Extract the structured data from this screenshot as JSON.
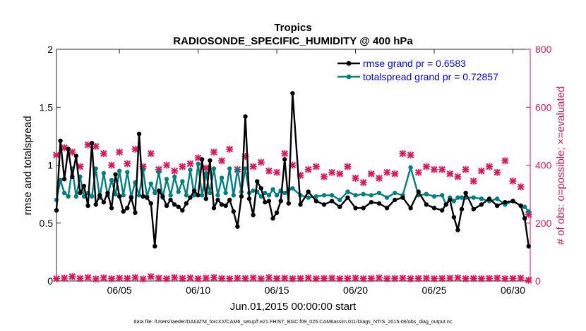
{
  "chart_data": {
    "type": "line",
    "title": "Tropics",
    "subtitle": "RADIOSONDE_SPECIFIC_HUMIDITY @ 400 hPa",
    "xlabel": "Jun.01,2015 00:00:00 start",
    "ylabel": "rmse and totalspread",
    "ylabel_right": "# of obs: o=possible; ×=evaluated",
    "footnote": "data file: /Users/raeder/DAI/ATM_forcXX/CAM6_setup/f.e21.FHIST_BGC.f09_025.CAM6assim.011/Diags_NTrS_2015-06/obs_diag_output.nc",
    "xlim": [
      1.0,
      31.1
    ],
    "ylim": [
      0,
      2
    ],
    "ylim_right": [
      0,
      800
    ],
    "x_ticks": [
      5,
      10,
      15,
      20,
      25,
      30
    ],
    "x_tick_labels": [
      "06/05",
      "06/10",
      "06/15",
      "06/20",
      "06/25",
      "06/30"
    ],
    "y_ticks": [
      0,
      0.5,
      1,
      1.5,
      2
    ],
    "y_tick_labels": [
      "0",
      "0.5",
      "1",
      "1.5",
      "2"
    ],
    "y2_ticks": [
      0,
      200,
      400,
      600,
      800
    ],
    "y2_tick_labels": [
      "0",
      "200",
      "400",
      "600",
      "800"
    ],
    "colors": {
      "rmse": "#000000",
      "spread": "#008080",
      "obs": "#e0145a",
      "legend_text": "#0000ff"
    },
    "legend": {
      "placement": "top-right",
      "entries": [
        "rmse grand pr = 0.6583",
        "totalspread grand pr = 0.72857"
      ]
    },
    "series": [
      {
        "name": "rmse grand pr = 0.6583",
        "axis": "left",
        "x": [
          1.0,
          1.25,
          1.5,
          1.75,
          2.0,
          2.25,
          2.5,
          2.75,
          3.0,
          3.25,
          3.5,
          3.75,
          4.0,
          4.25,
          4.5,
          4.75,
          5.0,
          5.25,
          5.5,
          5.75,
          6.0,
          6.25,
          6.5,
          6.75,
          7.0,
          7.25,
          7.5,
          7.75,
          8.0,
          8.25,
          8.5,
          8.75,
          9.0,
          9.25,
          9.5,
          9.75,
          10.0,
          10.25,
          10.5,
          10.75,
          11.0,
          11.25,
          11.5,
          11.75,
          12.0,
          12.25,
          12.5,
          12.75,
          13.0,
          13.25,
          13.5,
          13.75,
          14.0,
          14.25,
          14.5,
          14.75,
          15.0,
          15.25,
          15.5,
          15.75,
          16.0,
          16.5,
          17,
          17.5,
          18,
          18.5,
          19,
          19.5,
          20,
          20.5,
          21,
          21.5,
          22,
          22.5,
          23,
          23.5,
          24,
          24.5,
          25,
          25.5,
          25.75,
          26,
          26.25,
          26.5,
          26.75,
          27,
          27.5,
          28,
          28.5,
          29,
          29.5,
          30,
          30.5,
          30.75,
          31.0
        ],
        "values": [
          0.61,
          1.21,
          0.88,
          1.14,
          0.9,
          1.08,
          0.76,
          0.82,
          0.65,
          1.19,
          0.66,
          0.74,
          0.68,
          0.76,
          0.63,
          0.92,
          0.73,
          0.6,
          0.63,
          0.72,
          0.59,
          1.27,
          0.73,
          0.72,
          0.67,
          0.3,
          0.78,
          0.73,
          0.65,
          0.7,
          0.66,
          0.64,
          0.61,
          0.67,
          0.72,
          0.78,
          0.74,
          1.05,
          0.71,
          1.04,
          0.63,
          0.7,
          0.66,
          0.65,
          0.7,
          0.6,
          0.47,
          0.73,
          1.42,
          0.71,
          0.57,
          0.86,
          0.8,
          0.68,
          0.69,
          0.54,
          0.59,
          0.69,
          1.05,
          0.67,
          1.62,
          0.66,
          0.77,
          0.69,
          0.66,
          0.69,
          0.64,
          0.72,
          0.63,
          0.63,
          0.68,
          0.67,
          0.63,
          0.7,
          0.72,
          0.63,
          0.77,
          0.66,
          0.63,
          0.61,
          0.66,
          0.7,
          0.55,
          0.44,
          0.62,
          0.76,
          0.62,
          0.66,
          0.71,
          0.65,
          0.68,
          0.69,
          0.65,
          0.54,
          0.3
        ]
      },
      {
        "name": "totalspread grand pr = 0.72857",
        "axis": "left",
        "x": [
          1.0,
          1.25,
          1.5,
          1.75,
          2.0,
          2.25,
          2.5,
          2.75,
          3.0,
          3.25,
          3.5,
          3.75,
          4.0,
          4.25,
          4.5,
          4.75,
          5.0,
          5.25,
          5.5,
          5.75,
          6.0,
          6.25,
          6.5,
          6.75,
          7.0,
          7.25,
          7.5,
          7.75,
          8.0,
          8.25,
          8.5,
          8.75,
          9.0,
          9.25,
          9.5,
          9.75,
          10.0,
          10.25,
          10.5,
          10.75,
          11.0,
          11.25,
          11.5,
          11.75,
          12.0,
          12.25,
          12.5,
          12.75,
          13.0,
          13.25,
          13.5,
          13.75,
          14.0,
          14.25,
          14.5,
          14.75,
          15.0,
          15.25,
          15.5,
          15.75,
          16.0,
          16.5,
          17,
          17.5,
          18,
          18.5,
          19,
          19.5,
          20,
          20.5,
          21,
          21.5,
          22,
          22.5,
          23,
          23.5,
          24,
          24.5,
          25,
          25.5,
          25.75,
          26,
          26.25,
          26.5,
          26.75,
          27,
          27.5,
          28,
          28.5,
          29,
          29.5,
          30,
          30.5,
          30.75,
          31.0
        ],
        "values": [
          0.7,
          0.87,
          0.76,
          0.73,
          0.97,
          0.73,
          0.9,
          0.73,
          0.76,
          0.73,
          0.97,
          0.72,
          0.93,
          0.74,
          0.87,
          0.75,
          0.95,
          0.74,
          0.94,
          0.73,
          0.85,
          0.74,
          0.96,
          0.73,
          0.84,
          0.76,
          0.94,
          0.72,
          0.88,
          0.74,
          0.9,
          0.77,
          0.86,
          0.74,
          0.96,
          0.74,
          1.01,
          0.74,
          0.93,
          0.76,
          0.97,
          0.74,
          0.89,
          0.76,
          0.97,
          0.74,
          0.96,
          0.77,
          0.97,
          0.76,
          0.78,
          0.77,
          0.73,
          0.76,
          0.74,
          0.79,
          0.74,
          0.78,
          0.76,
          0.79,
          0.8,
          0.74,
          0.72,
          0.73,
          0.74,
          0.74,
          0.7,
          0.77,
          0.74,
          0.75,
          0.74,
          0.76,
          0.72,
          0.76,
          0.74,
          0.98,
          0.74,
          0.75,
          0.73,
          0.74,
          0.66,
          0.72,
          0.69,
          0.72,
          0.72,
          0.72,
          0.72,
          0.71,
          0.69,
          0.71,
          0.66,
          0.69,
          0.65,
          0.64,
          0.6
        ]
      },
      {
        "name": "possible obs count",
        "axis": "right",
        "marker": "x",
        "x": [
          1.0,
          1.5,
          2.0,
          2.5,
          3.0,
          3.5,
          4.0,
          4.5,
          5.0,
          5.5,
          6.0,
          6.5,
          7.0,
          7.5,
          8.0,
          8.5,
          9.0,
          9.5,
          10.0,
          10.5,
          11.0,
          11.5,
          12.0,
          12.5,
          13.0,
          13.5,
          14.0,
          14.5,
          15.0,
          15.5,
          16.0,
          16.5,
          17,
          17.5,
          18,
          18.5,
          19,
          19.5,
          20,
          20.5,
          21,
          21.5,
          22,
          22.5,
          23,
          23.5,
          24,
          24.5,
          25,
          25.5,
          26,
          26.5,
          27,
          27.5,
          28,
          28.5,
          29,
          29.5,
          30,
          30.5,
          31.0
        ],
        "values": [
          435,
          460,
          445,
          395,
          470,
          465,
          440,
          400,
          445,
          405,
          455,
          395,
          440,
          385,
          400,
          380,
          395,
          405,
          425,
          390,
          445,
          415,
          455,
          385,
          430,
          395,
          410,
          380,
          375,
          440,
          400,
          365,
          385,
          395,
          360,
          375,
          370,
          395,
          355,
          340,
          370,
          355,
          375,
          370,
          440,
          435,
          375,
          395,
          385,
          385,
          370,
          360,
          385,
          345,
          380,
          395,
          375,
          415,
          345,
          325,
          230
        ]
      },
      {
        "name": "evaluated obs count",
        "axis": "right",
        "marker": "o",
        "x": [
          1.0,
          1.5,
          2.0,
          2.5,
          3.0,
          3.5,
          4.0,
          4.5,
          5.0,
          5.5,
          6.0,
          6.5,
          7.0,
          7.5,
          8.0,
          8.5,
          9.0,
          9.5,
          10.0,
          10.5,
          11.0,
          11.5,
          12.0,
          12.5,
          13.0,
          13.5,
          14.0,
          14.5,
          15.0,
          15.5,
          16.0,
          16.5,
          17,
          17.5,
          18,
          18.5,
          19,
          19.5,
          20,
          20.5,
          21,
          21.5,
          22,
          22.5,
          23,
          23.5,
          24,
          24.5,
          25,
          25.5,
          26,
          26.5,
          27,
          27.5,
          28,
          28.5,
          29,
          29.5,
          30,
          30.5,
          31.0
        ],
        "values": [
          8,
          10,
          15,
          9,
          12,
          7,
          11,
          8,
          10,
          9,
          12,
          7,
          15,
          10,
          8,
          12,
          9,
          11,
          8,
          10,
          12,
          9,
          8,
          10,
          9,
          11,
          8,
          12,
          9,
          10,
          8,
          9,
          11,
          8,
          9,
          10,
          8,
          9,
          10,
          8,
          9,
          11,
          8,
          9,
          10,
          8,
          9,
          10,
          8,
          9,
          10,
          11,
          8,
          9,
          8,
          9,
          10,
          8,
          9,
          10,
          3
        ]
      }
    ]
  }
}
